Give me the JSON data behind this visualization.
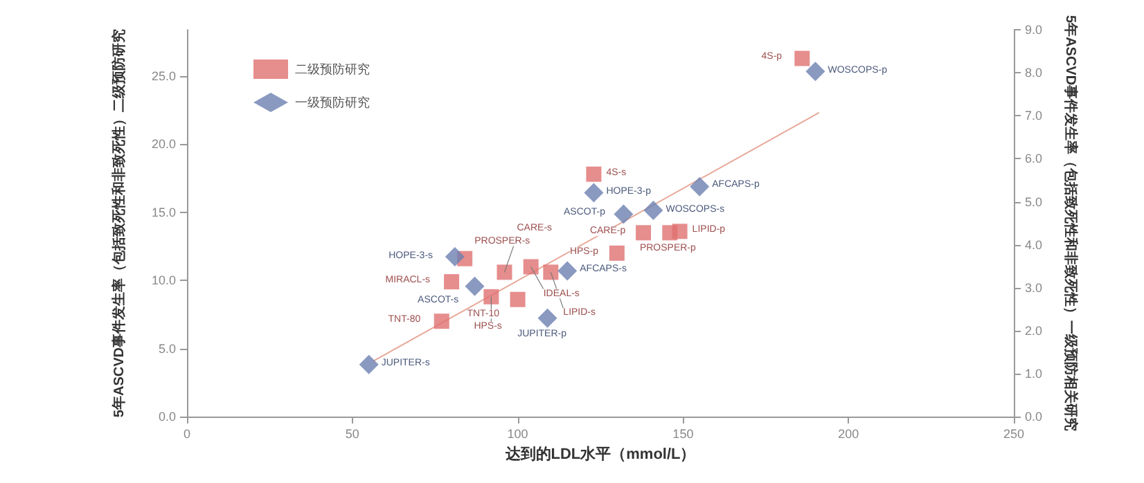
{
  "chart_data": {
    "type": "scatter",
    "xlabel": "达到的LDL水平（mmol/L）",
    "ylabel": "5年ASCVD事件发生率（包括致死性和非致死性）二级预防研究",
    "y2label": "5年ASCVD事件发生率（包括致死性和非致死性）一级预防相关研究",
    "xlim": [
      0,
      250
    ],
    "xticks": [
      0,
      50,
      100,
      150,
      200,
      250
    ],
    "ylim": [
      0,
      28.4
    ],
    "yticks": [
      {
        "value": 0,
        "label": "0.0"
      },
      {
        "value": 5,
        "label": "5.0"
      },
      {
        "value": 10,
        "label": "10.0"
      },
      {
        "value": 15,
        "label": "15.0"
      },
      {
        "value": 20,
        "label": "20.0"
      },
      {
        "value": 25,
        "label": "25.0"
      }
    ],
    "y2lim": [
      0,
      9
    ],
    "y2ticks": [
      {
        "value": 0,
        "label": "0.0"
      },
      {
        "value": 1,
        "label": "1.0"
      },
      {
        "value": 2,
        "label": "2.0"
      },
      {
        "value": 3,
        "label": "3.0"
      },
      {
        "value": 4,
        "label": "4.0"
      },
      {
        "value": 5,
        "label": "5.0"
      },
      {
        "value": 6,
        "label": "6.0"
      },
      {
        "value": 7,
        "label": "7.0"
      },
      {
        "value": 8,
        "label": "8.0"
      },
      {
        "value": 9,
        "label": "9.0"
      }
    ],
    "grid": false,
    "legend": "top left",
    "series": [
      {
        "name": "二级预防研究",
        "color": "#e07070",
        "marker": "square",
        "x": [
          186,
          123,
          138,
          146,
          149,
          130,
          84,
          104,
          96,
          110,
          80,
          92,
          100,
          77
        ],
        "values": [
          26.3,
          17.8,
          13.5,
          13.5,
          13.6,
          12.0,
          11.6,
          11.0,
          10.6,
          10.6,
          9.9,
          8.8,
          8.6,
          7.0
        ]
      },
      {
        "name": "一级预防研究",
        "color": "#6b7fb0",
        "marker": "diamond",
        "axis": "y2",
        "x": [
          190,
          123,
          155,
          132,
          141,
          81,
          87,
          115,
          109,
          55
        ],
        "values": [
          8.03,
          5.21,
          5.35,
          4.71,
          4.8,
          3.72,
          3.03,
          3.39,
          2.29,
          1.21
        ]
      },
      {
        "type": "line",
        "color": "#e8a898",
        "marker": "none",
        "line_style": "solid",
        "x": [
          56.5,
          191
        ],
        "values": [
          4.1,
          22.3
        ]
      }
    ],
    "annotations": [
      {
        "text": "4S-p",
        "x": 186,
        "y": 26.3
      },
      {
        "text": "4S-s",
        "x": 123,
        "y": 17.8
      },
      {
        "text": "CARE-p",
        "x": 138,
        "y": 13.5
      },
      {
        "text": "LIPID-p",
        "x": 149,
        "y": 13.6
      },
      {
        "text": "PROSPER-p",
        "x": 146,
        "y": 13.5
      },
      {
        "text": "HPS-p",
        "x": 130,
        "y": 12.0
      },
      {
        "text": "PROSPER-s",
        "x": 84,
        "y": 11.6
      },
      {
        "text": "IDEAL-s",
        "x": 104,
        "y": 11.0
      },
      {
        "text": "CARE-s",
        "x": 96,
        "y": 10.6
      },
      {
        "text": "LIPID-s",
        "x": 110,
        "y": 10.6
      },
      {
        "text": "MIRACL-s",
        "x": 80,
        "y": 9.9
      },
      {
        "text": "HPS-s",
        "x": 92,
        "y": 8.8
      },
      {
        "text": "TNT-10",
        "x": 100,
        "y": 8.6
      },
      {
        "text": "TNT-80",
        "x": 77,
        "y": 7.0
      },
      {
        "text": "WOSCOPS-p",
        "x": 190,
        "y": 25.3
      },
      {
        "text": "HOPE-3-p",
        "x": 123,
        "y": 16.4
      },
      {
        "text": "AFCAPS-p",
        "x": 155,
        "y": 16.9
      },
      {
        "text": "ASCOT-p",
        "x": 132,
        "y": 14.9
      },
      {
        "text": "WOSCOPS-s",
        "x": 141,
        "y": 15.1
      },
      {
        "text": "HOPE-3-s",
        "x": 81,
        "y": 11.7
      },
      {
        "text": "ASCOT-s",
        "x": 87,
        "y": 9.6
      },
      {
        "text": "AFCAPS-s",
        "x": 115,
        "y": 10.7
      },
      {
        "text": "JUPITER-p",
        "x": 109,
        "y": 7.2
      },
      {
        "text": "JUPITER-s",
        "x": 55,
        "y": 3.8
      }
    ]
  }
}
